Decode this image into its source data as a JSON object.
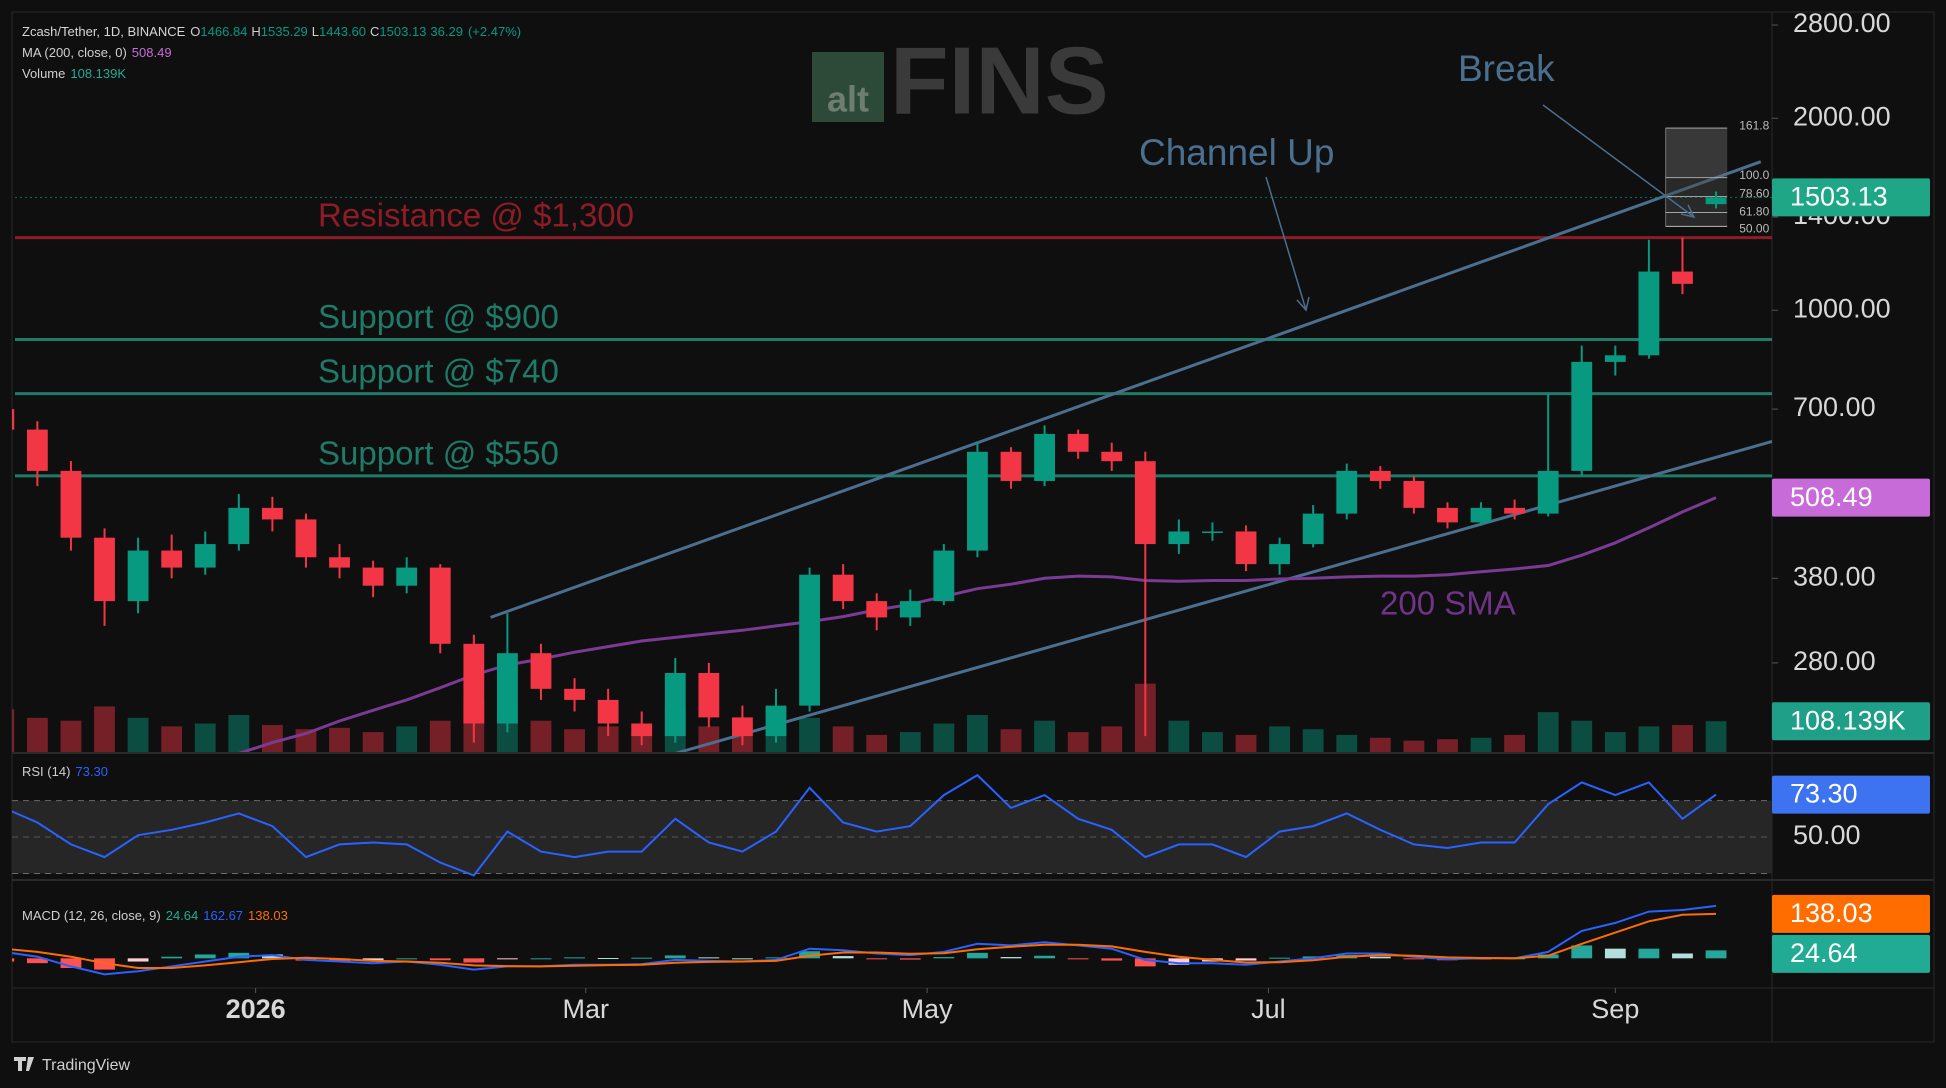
{
  "chart_data": [
    {
      "type": "candlestick",
      "symbol": "Zcash/Tether, 1D, BINANCE",
      "ohlc_legend": [
        {
          "label": "O",
          "value": 1466.84
        },
        {
          "label": "H",
          "value": 1535.29
        },
        {
          "label": "L",
          "value": 1443.6,
          "value_label": "1443.60"
        },
        {
          "label": "C",
          "value": 1503.13
        }
      ],
      "change": 36.29,
      "change_pct_label": "(+2.47%)",
      "indicators": [
        {
          "name": "MA (200, close, 0)",
          "color": "#c76bd8"
        },
        {
          "name": "Volume",
          "color": "#22ab94"
        }
      ],
      "volume_label": "108.139K",
      "log": true,
      "grid": false,
      "up_color": "#089981",
      "down_color": "#f23645",
      "xlim": [
        -43,
        271
      ],
      "xticks": [
        {
          "value": 0,
          "label": "2026"
        },
        {
          "value": 59,
          "label": "Mar"
        },
        {
          "value": 120,
          "label": "May"
        },
        {
          "value": 181,
          "label": "Jul"
        },
        {
          "value": 243,
          "label": "Sep"
        }
      ],
      "ylim": [
        203,
        2935
      ],
      "yticks": [
        {
          "value": 280,
          "label": "280.00"
        },
        {
          "value": 380,
          "label": "380.00"
        },
        {
          "value": 700,
          "label": "700.00"
        },
        {
          "value": 1000,
          "label": "1000.00"
        },
        {
          "value": 1400,
          "label": "1400.00"
        },
        {
          "value": 2000,
          "label": "2000.00"
        },
        {
          "value": 2800,
          "label": "2800.00"
        }
      ],
      "volume_ylim": [
        0,
        2600000
      ],
      "x": [
        -45,
        -39,
        -33,
        -27,
        -21,
        -15,
        -9,
        -3,
        3,
        9,
        15,
        21,
        27,
        33,
        39,
        45,
        51,
        57,
        63,
        69,
        75,
        81,
        87,
        93,
        99,
        105,
        111,
        117,
        123,
        129,
        135,
        141,
        147,
        153,
        159,
        165,
        171,
        177,
        183,
        189,
        195,
        201,
        207,
        213,
        219,
        225,
        231,
        237,
        243,
        249,
        255,
        261
      ],
      "open": [
        700,
        650,
        560,
        440,
        350,
        420,
        395,
        430,
        490,
        470,
        410,
        395,
        370,
        395,
        300,
        225,
        290,
        255,
        245,
        225,
        215,
        270,
        230,
        215,
        240,
        385,
        350,
        330,
        350,
        420,
        600,
        540,
        640,
        600,
        580,
        430,
        450,
        450,
        400,
        430,
        480,
        560,
        540,
        490,
        465,
        490,
        480,
        560,
        830,
        850,
        1150,
        1466.84
      ],
      "high": [
        725,
        670,
        580,
        455,
        440,
        445,
        450,
        515,
        510,
        480,
        430,
        405,
        410,
        400,
        310,
        335,
        300,
        265,
        255,
        235,
        285,
        280,
        240,
        255,
        395,
        400,
        360,
        365,
        430,
        620,
        610,
        660,
        650,
        620,
        600,
        470,
        465,
        460,
        440,
        495,
        575,
        570,
        550,
        500,
        500,
        505,
        740,
        880,
        880,
        1290,
        1300,
        1535.29
      ],
      "low": [
        615,
        530,
        420,
        320,
        335,
        380,
        385,
        420,
        450,
        395,
        380,
        355,
        360,
        290,
        210,
        218,
        245,
        235,
        215,
        208,
        210,
        222,
        208,
        210,
        235,
        340,
        315,
        320,
        345,
        410,
        525,
        530,
        585,
        560,
        215,
        415,
        435,
        390,
        385,
        425,
        470,
        525,
        480,
        455,
        460,
        470,
        475,
        550,
        790,
        840,
        1060,
        1443.6
      ],
      "close": [
        650,
        560,
        440,
        350,
        420,
        395,
        430,
        490,
        470,
        410,
        395,
        370,
        395,
        300,
        225,
        290,
        255,
        245,
        225,
        215,
        270,
        230,
        215,
        240,
        385,
        350,
        330,
        350,
        420,
        600,
        540,
        640,
        600,
        580,
        430,
        450,
        450,
        400,
        430,
        480,
        560,
        540,
        490,
        465,
        490,
        480,
        560,
        830,
        850,
        1150,
        1100,
        1503.13
      ],
      "volume": [
        150000,
        120000,
        110000,
        160000,
        120000,
        90000,
        100000,
        130000,
        95000,
        80000,
        85000,
        70000,
        90000,
        110000,
        180000,
        170000,
        110000,
        80000,
        90000,
        70000,
        150000,
        90000,
        70000,
        80000,
        120000,
        90000,
        60000,
        70000,
        100000,
        130000,
        80000,
        110000,
        70000,
        90000,
        240000,
        110000,
        70000,
        60000,
        90000,
        80000,
        60000,
        50000,
        40000,
        45000,
        50000,
        60000,
        140000,
        110000,
        70000,
        90000,
        95000,
        108139
      ],
      "ma": {
        "name": "200 SMA",
        "color": "#7b3a94",
        "badge_color": "#c76bd8",
        "values": [
          null,
          null,
          null,
          null,
          null,
          null,
          null,
          202,
          210,
          217,
          227,
          236,
          245,
          256,
          268,
          278,
          284,
          291,
          297,
          303,
          307,
          311,
          315,
          320,
          325,
          331,
          339,
          346,
          356,
          366,
          372,
          380,
          383,
          382,
          377,
          376,
          377,
          377,
          379,
          380,
          382,
          383,
          383,
          385,
          389,
          393,
          398,
          413,
          432,
          456,
          483,
          508.49
        ]
      },
      "levels": [
        {
          "label": "Resistance @ $1,300",
          "value": 1300,
          "color": "#8e1c27"
        },
        {
          "label": "Support @ $900",
          "value": 900,
          "color": "#1f7a68"
        },
        {
          "label": "Support @ $740",
          "value": 740,
          "color": "#1f7a68"
        },
        {
          "label": "Support @ $550",
          "value": 550,
          "color": "#1f7a68"
        }
      ],
      "trendlines": [
        {
          "x": [
            42,
            269
          ],
          "values": [
            330,
            1710
          ],
          "color": "#4a6f8f"
        },
        {
          "x": [
            75,
            271
          ],
          "values": [
            202,
            623
          ],
          "color": "#4a6f8f"
        }
      ],
      "fib": {
        "x": [
          252,
          263
        ],
        "ratios": [
          "161.8",
          "100.0",
          "78.60",
          "61.80",
          "50.00"
        ],
        "prices": [
          1930,
          1614,
          1508,
          1423,
          1354
        ]
      },
      "annotations": {
        "channel": "Channel Up",
        "break": "Break"
      },
      "watermark": {
        "small": "alt",
        "large": "FINS"
      }
    },
    {
      "type": "line",
      "title": "RSI (14)",
      "current_label": "73.30",
      "color": "#2962ff",
      "badge_color": "#3d73f0",
      "ylim": [
        27,
        95
      ],
      "yticks": [
        {
          "value": 50,
          "label": "50.00"
        }
      ],
      "bands": [
        70,
        30
      ],
      "values": [
        66,
        58,
        46,
        39,
        51,
        54,
        58,
        63,
        56,
        39,
        46,
        47,
        46,
        36,
        29,
        53,
        42,
        39,
        42,
        42,
        60,
        47,
        42,
        53,
        77,
        58,
        53,
        56,
        73,
        84,
        66,
        73,
        60,
        54,
        39,
        46,
        46,
        39,
        53,
        56,
        63,
        54,
        46,
        44,
        47,
        47,
        68,
        80,
        73,
        80,
        60,
        73.3
      ]
    },
    {
      "type": "macd",
      "title": "MACD (12, 26, close, 9)",
      "ylim": [
        -89,
        240
      ],
      "hist_colors": [
        "#26a69a",
        "#b2dfdb",
        "#ff5252",
        "#ffcdd2"
      ],
      "hist_badge_color": "#22ab94",
      "histogram": [
        -10,
        -15,
        -30,
        -35,
        -10,
        5,
        12,
        17,
        12,
        -7,
        -8,
        -7,
        0,
        -6,
        -13,
        -1,
        0,
        3,
        1,
        2,
        9,
        3,
        0,
        3,
        22,
        7,
        -3,
        -4,
        4,
        17,
        4,
        8,
        -2,
        -7,
        -25,
        -20,
        -10,
        -7,
        2,
        6,
        10,
        5,
        -3,
        -6,
        -1,
        0,
        12,
        40,
        30,
        30,
        15,
        24.64
      ],
      "macd": {
        "color": "#2962ff",
        "values": [
          20,
          5,
          -25,
          -50,
          -40,
          -25,
          -10,
          5,
          10,
          -5,
          -10,
          -15,
          -10,
          -20,
          -35,
          -25,
          -25,
          -20,
          -20,
          -18,
          -5,
          -8,
          -10,
          -5,
          30,
          25,
          15,
          10,
          20,
          45,
          40,
          50,
          40,
          30,
          -5,
          -15,
          -15,
          -20,
          -10,
          0,
          15,
          15,
          5,
          -3,
          0,
          0,
          20,
          85,
          110,
          145,
          150,
          162.67
        ]
      },
      "signal": {
        "color": "#ff6d00",
        "values": [
          30,
          20,
          5,
          -15,
          -30,
          -30,
          -22,
          -12,
          -2,
          2,
          -2,
          -8,
          -10,
          -14,
          -22,
          -24,
          -25,
          -23,
          -21,
          -20,
          -14,
          -11,
          -10,
          -8,
          8,
          18,
          18,
          14,
          16,
          28,
          36,
          42,
          42,
          37,
          20,
          5,
          -5,
          -13,
          -12,
          -6,
          5,
          10,
          8,
          3,
          1,
          0,
          8,
          45,
          80,
          115,
          135,
          138.03
        ]
      }
    }
  ],
  "footer": "TradingView"
}
